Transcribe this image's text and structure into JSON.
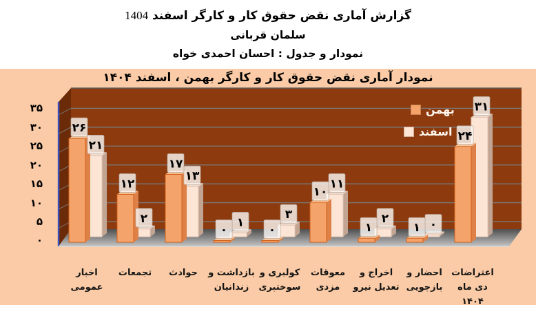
{
  "header": {
    "line1_text": "گزارش آماری نقض حقوق کار و کارگر اسفند",
    "line1_year": "1404",
    "line2": "سلمان قربانی",
    "line3": "نمودار و جدول : احسان احمدی خواه"
  },
  "chart": {
    "title": "نمودار آماری نقض حقوق کار و کارگر بهمن ، اسفند ۱۴۰۴"
  },
  "chart_data": {
    "type": "bar",
    "style": "3d-grouped-columns",
    "title": "نمودار آماری نقض حقوق کار و کارگر بهمن ، اسفند ۱۴۰۴",
    "categories": [
      "اخبار عمومی",
      "تجمعات",
      "حوادث",
      "بازداشت و زندانیان",
      "کولبری و سوختبری",
      "معوقات مزدی",
      "اخراج و تعدیل نیرو",
      "احضار و بازجویی",
      "اعتراضات دی ماه ۱۴۰۴"
    ],
    "categories_display": [
      [
        "اخبار",
        "عمومی"
      ],
      [
        "تجمعات"
      ],
      [
        "حوادث"
      ],
      [
        "بازداشت و",
        "زندانیان"
      ],
      [
        "کولبری و",
        "سوختبری"
      ],
      [
        "معوقات",
        "مزدی"
      ],
      [
        "اخراج و",
        "تعدیل نیرو"
      ],
      [
        "احضار و",
        "بازجویی"
      ],
      [
        "اعتراضات",
        "دی ماه",
        "۱۴۰۴"
      ]
    ],
    "series": [
      {
        "name": "بهمن",
        "values": [
          26,
          12,
          17,
          0,
          0,
          10,
          1,
          1,
          24
        ],
        "labels_fa": [
          "۲۶",
          "۱۲",
          "۱۷",
          "۰",
          "۰",
          "۱۰",
          "۱",
          "۱",
          "۲۴"
        ]
      },
      {
        "name": "اسفند",
        "values": [
          21,
          2,
          13,
          1,
          3,
          11,
          2,
          0,
          31
        ],
        "labels_fa": [
          "۲۱",
          "۲",
          "۱۳",
          "۱",
          "۳",
          "۱۱",
          "۲",
          "۰",
          "۳۱"
        ]
      }
    ],
    "y_axis": {
      "ticks": [
        35,
        30,
        25,
        20,
        15,
        10,
        5,
        0
      ],
      "ticks_fa": [
        "۳۵",
        "۳۰",
        "۲۵",
        "۲۰",
        "۱۵",
        "۱۰",
        "۵",
        "۰"
      ],
      "min": 0,
      "max": 35,
      "step": 5
    },
    "ylim": [
      0,
      35
    ],
    "grid": true,
    "legend_position": "top-right"
  },
  "colors": {
    "page_bg": "#FFFFFF",
    "chart_bg": "#FACBA6",
    "wall_back": "#8C3A0E",
    "wall_side": "#6B2A08",
    "wall_edge_blue": "#3A53C4",
    "gridline": "#7A7A7A",
    "floor_dark": "#4F4F4F",
    "floor_light": "#C4C4C4",
    "bahman_front": "#F4A46B",
    "bahman_border": "#D2601A",
    "bahman_top": "#F7C69B",
    "bahman_side": "#DD8148",
    "esfand_front": "#FCE5D5",
    "esfand_border": "#E0C6B6",
    "esfand_top": "#EFDACC",
    "esfand_side": "#C2A493",
    "value_tag_bg": "rgba(253,250,247,0.8)",
    "value_tag_border": "rgba(180,165,152,0.85)",
    "legend_text": "#FFF7EE"
  }
}
